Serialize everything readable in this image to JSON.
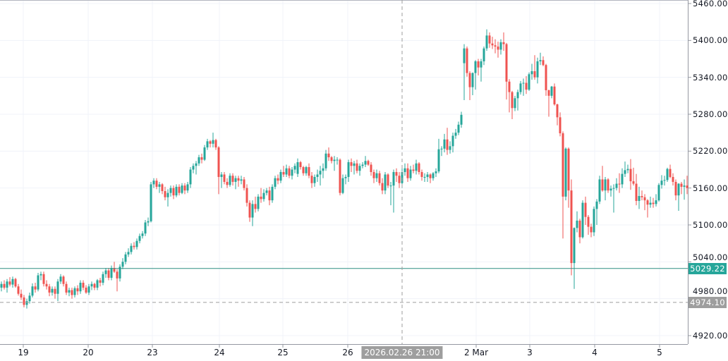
{
  "chart_data": {
    "type": "candlestick",
    "title": "",
    "ylim": [
      4920,
      5460
    ],
    "y_ticks": [
      "5460.00",
      "5400.00",
      "5340.00",
      "5280.00",
      "5220.00",
      "5160.00",
      "5100.00",
      "5040.00",
      "4980.00",
      "4920.00"
    ],
    "x_ticks": [
      {
        "label": "19",
        "bar": 7.75
      },
      {
        "label": "20",
        "bar": 30.75
      },
      {
        "label": "23",
        "bar": 53.5
      },
      {
        "label": "24",
        "bar": 77.25
      },
      {
        "label": "25",
        "bar": 99.75
      },
      {
        "label": "26",
        "bar": 122.75
      },
      {
        "label": "2 Mar",
        "bar": 168.25
      },
      {
        "label": "3",
        "bar": 187.25
      },
      {
        "label": "4",
        "bar": 210.25
      },
      {
        "label": "5",
        "bar": 233.25
      }
    ],
    "current_price": {
      "label": "5029.22",
      "value": 5029.22
    },
    "crosshair": {
      "price_label": "4974.10",
      "price": 4974.1,
      "time_label": "2026.02.26 21:00",
      "bar": 142
    },
    "colors": {
      "up": "#26a69a",
      "down": "#ef5350",
      "grid": "#f0f3fa",
      "crosshair": "#9e9e9e"
    },
    "candles_ohlc": [
      [
        4998,
        5008,
        4992,
        5004
      ],
      [
        5004,
        5010,
        4995,
        4998
      ],
      [
        4998,
        5012,
        4990,
        5008
      ],
      [
        5008,
        5015,
        5000,
        5003
      ],
      [
        5003,
        5016,
        4998,
        5012
      ],
      [
        5012,
        5014,
        4998,
        5000
      ],
      [
        5000,
        5004,
        4985,
        4988
      ],
      [
        4988,
        4995,
        4978,
        4982
      ],
      [
        4982,
        4986,
        4966,
        4970
      ],
      [
        4970,
        4980,
        4964,
        4976
      ],
      [
        4976,
        4990,
        4972,
        4985
      ],
      [
        4985,
        5005,
        4982,
        5000
      ],
      [
        5000,
        5006,
        4990,
        4995
      ],
      [
        4995,
        5022,
        4992,
        5018
      ],
      [
        5018,
        5024,
        5010,
        5020
      ],
      [
        5020,
        5024,
        5000,
        5004
      ],
      [
        5004,
        5010,
        4995,
        5000
      ],
      [
        5000,
        5004,
        4984,
        4990
      ],
      [
        4990,
        5000,
        4985,
        4996
      ],
      [
        4996,
        5000,
        4980,
        4988
      ],
      [
        4988,
        5012,
        4976,
        5008
      ],
      [
        5008,
        5020,
        5004,
        5016
      ],
      [
        5016,
        5018,
        5000,
        5004
      ],
      [
        5004,
        5008,
        4986,
        4990
      ],
      [
        4990,
        4998,
        4984,
        4994
      ],
      [
        4994,
        4998,
        4980,
        4986
      ],
      [
        4986,
        5000,
        4982,
        4997
      ],
      [
        4997,
        5002,
        4986,
        4992
      ],
      [
        4992,
        5010,
        4988,
        5006
      ],
      [
        5006,
        5010,
        4994,
        4998
      ],
      [
        4998,
        5002,
        4988,
        4990
      ],
      [
        4990,
        5004,
        4986,
        5000
      ],
      [
        5000,
        5008,
        4994,
        5004
      ],
      [
        5004,
        5006,
        4994,
        4998
      ],
      [
        4998,
        5012,
        4994,
        5010
      ],
      [
        5010,
        5014,
        5000,
        5006
      ],
      [
        5006,
        5024,
        5002,
        5020
      ],
      [
        5020,
        5030,
        5014,
        5026
      ],
      [
        5026,
        5030,
        5010,
        5014
      ],
      [
        5014,
        5034,
        5010,
        5030
      ],
      [
        5030,
        5040,
        5022,
        5024
      ],
      [
        5024,
        5028,
        4992,
        5013
      ],
      [
        5013,
        5036,
        5008,
        5032
      ],
      [
        5032,
        5046,
        5028,
        5040
      ],
      [
        5040,
        5056,
        5036,
        5052
      ],
      [
        5052,
        5062,
        5048,
        5056
      ],
      [
        5056,
        5070,
        5052,
        5066
      ],
      [
        5066,
        5072,
        5060,
        5064
      ],
      [
        5064,
        5078,
        5060,
        5074
      ],
      [
        5074,
        5086,
        5070,
        5082
      ],
      [
        5082,
        5090,
        5078,
        5086
      ],
      [
        5086,
        5108,
        5082,
        5104
      ],
      [
        5104,
        5112,
        5098,
        5106
      ],
      [
        5106,
        5170,
        5104,
        5166
      ],
      [
        5166,
        5176,
        5160,
        5172
      ],
      [
        5172,
        5176,
        5158,
        5162
      ],
      [
        5162,
        5170,
        5152,
        5166
      ],
      [
        5166,
        5168,
        5150,
        5155
      ],
      [
        5155,
        5162,
        5140,
        5145
      ],
      [
        5145,
        5158,
        5130,
        5152
      ],
      [
        5152,
        5164,
        5146,
        5160
      ],
      [
        5160,
        5164,
        5142,
        5148
      ],
      [
        5148,
        5166,
        5145,
        5162
      ],
      [
        5162,
        5166,
        5148,
        5152
      ],
      [
        5152,
        5168,
        5150,
        5164
      ],
      [
        5164,
        5168,
        5150,
        5156
      ],
      [
        5156,
        5170,
        5152,
        5166
      ],
      [
        5166,
        5194,
        5160,
        5190
      ],
      [
        5190,
        5200,
        5184,
        5196
      ],
      [
        5196,
        5204,
        5182,
        5200
      ],
      [
        5200,
        5214,
        5196,
        5210
      ],
      [
        5210,
        5216,
        5200,
        5206
      ],
      [
        5206,
        5230,
        5204,
        5226
      ],
      [
        5226,
        5240,
        5222,
        5236
      ],
      [
        5236,
        5238,
        5226,
        5232
      ],
      [
        5232,
        5250,
        5226,
        5238
      ],
      [
        5238,
        5240,
        5222,
        5226
      ],
      [
        5226,
        5228,
        5150,
        5178
      ],
      [
        5178,
        5186,
        5160,
        5182
      ],
      [
        5182,
        5186,
        5166,
        5170
      ],
      [
        5170,
        5176,
        5160,
        5165
      ],
      [
        5165,
        5184,
        5162,
        5180
      ],
      [
        5180,
        5184,
        5164,
        5170
      ],
      [
        5170,
        5180,
        5158,
        5176
      ],
      [
        5176,
        5180,
        5162,
        5172
      ],
      [
        5172,
        5180,
        5166,
        5174
      ],
      [
        5174,
        5178,
        5156,
        5160
      ],
      [
        5160,
        5166,
        5130,
        5136
      ],
      [
        5136,
        5140,
        5105,
        5112
      ],
      [
        5112,
        5140,
        5098,
        5134
      ],
      [
        5134,
        5146,
        5120,
        5126
      ],
      [
        5126,
        5150,
        5122,
        5146
      ],
      [
        5146,
        5160,
        5136,
        5142
      ],
      [
        5142,
        5158,
        5138,
        5152
      ],
      [
        5152,
        5160,
        5148,
        5156
      ],
      [
        5156,
        5162,
        5132,
        5140
      ],
      [
        5140,
        5166,
        5136,
        5162
      ],
      [
        5162,
        5180,
        5158,
        5176
      ],
      [
        5176,
        5182,
        5166,
        5172
      ],
      [
        5172,
        5190,
        5168,
        5186
      ],
      [
        5186,
        5196,
        5178,
        5182
      ],
      [
        5182,
        5198,
        5178,
        5192
      ],
      [
        5192,
        5196,
        5176,
        5180
      ],
      [
        5180,
        5194,
        5174,
        5190
      ],
      [
        5190,
        5200,
        5184,
        5196
      ],
      [
        5183,
        5208,
        5178,
        5202
      ],
      [
        5202,
        5204,
        5190,
        5194
      ],
      [
        5194,
        5196,
        5180,
        5184
      ],
      [
        5184,
        5196,
        5180,
        5194
      ],
      [
        5194,
        5200,
        5176,
        5180
      ],
      [
        5180,
        5186,
        5160,
        5168
      ],
      [
        5168,
        5182,
        5162,
        5178
      ],
      [
        5178,
        5190,
        5170,
        5182
      ],
      [
        5182,
        5196,
        5164,
        5188
      ],
      [
        5188,
        5200,
        5176,
        5192
      ],
      [
        5192,
        5222,
        5188,
        5216
      ],
      [
        5216,
        5226,
        5204,
        5210
      ],
      [
        5210,
        5212,
        5200,
        5204
      ],
      [
        5204,
        5212,
        5188,
        5206
      ],
      [
        5206,
        5210,
        5198,
        5206
      ],
      [
        5206,
        5208,
        5148,
        5152
      ],
      [
        5152,
        5182,
        5150,
        5176
      ],
      [
        5176,
        5182,
        5166,
        5178
      ],
      [
        5178,
        5206,
        5170,
        5202
      ],
      [
        5202,
        5208,
        5186,
        5196
      ],
      [
        5196,
        5204,
        5182,
        5200
      ],
      [
        5200,
        5206,
        5184,
        5188
      ],
      [
        5188,
        5200,
        5180,
        5196
      ],
      [
        5196,
        5202,
        5192,
        5198
      ],
      [
        5198,
        5212,
        5194,
        5204
      ],
      [
        5204,
        5206,
        5196,
        5198
      ],
      [
        5198,
        5202,
        5180,
        5186
      ],
      [
        5186,
        5190,
        5168,
        5176
      ],
      [
        5176,
        5190,
        5170,
        5184
      ],
      [
        5184,
        5188,
        5164,
        5168
      ],
      [
        5168,
        5176,
        5150,
        5156
      ],
      [
        5156,
        5186,
        5150,
        5182
      ],
      [
        5182,
        5184,
        5160,
        5164
      ],
      [
        5164,
        5170,
        5132,
        5164
      ],
      [
        5164,
        5190,
        5120,
        5186
      ],
      [
        5186,
        5192,
        5170,
        5180
      ],
      [
        5180,
        5186,
        5160,
        5168
      ],
      [
        5168,
        5192,
        5160,
        5186
      ],
      [
        5186,
        5200,
        5180,
        5192
      ],
      [
        5192,
        5200,
        5170,
        5176
      ],
      [
        5176,
        5196,
        5172,
        5190
      ],
      [
        5190,
        5198,
        5184,
        5188
      ],
      [
        5188,
        5206,
        5182,
        5200
      ],
      [
        5200,
        5202,
        5182,
        5186
      ],
      [
        5186,
        5190,
        5172,
        5178
      ],
      [
        5178,
        5184,
        5170,
        5178
      ],
      [
        5178,
        5186,
        5170,
        5182
      ],
      [
        5182,
        5184,
        5168,
        5176
      ],
      [
        5176,
        5186,
        5172,
        5184
      ],
      [
        5184,
        5192,
        5178,
        5187
      ],
      [
        5187,
        5240,
        5184,
        5223
      ],
      [
        5223,
        5228,
        5212,
        5224
      ],
      [
        5224,
        5248,
        5218,
        5239
      ],
      [
        5239,
        5258,
        5214,
        5222
      ],
      [
        5222,
        5236,
        5216,
        5228
      ],
      [
        5228,
        5250,
        5218,
        5245
      ],
      [
        5245,
        5256,
        5240,
        5250
      ],
      [
        5250,
        5268,
        5246,
        5263
      ],
      [
        5263,
        5284,
        5258,
        5279
      ],
      [
        5363,
        5394,
        5303,
        5387
      ],
      [
        5387,
        5390,
        5341,
        5347
      ],
      [
        5347,
        5350,
        5303,
        5324
      ],
      [
        5324,
        5348,
        5311,
        5347
      ],
      [
        5347,
        5368,
        5320,
        5366
      ],
      [
        5366,
        5370,
        5343,
        5356
      ],
      [
        5356,
        5370,
        5333,
        5366
      ],
      [
        5366,
        5390,
        5360,
        5387
      ],
      [
        5387,
        5418,
        5383,
        5408
      ],
      [
        5408,
        5413,
        5388,
        5395
      ],
      [
        5395,
        5406,
        5386,
        5392
      ],
      [
        5392,
        5402,
        5379,
        5390
      ],
      [
        5390,
        5398,
        5372,
        5385
      ],
      [
        5385,
        5402,
        5377,
        5397
      ],
      [
        5397,
        5413,
        5383,
        5394
      ],
      [
        5394,
        5396,
        5304,
        5333
      ],
      [
        5333,
        5337,
        5283,
        5316
      ],
      [
        5316,
        5318,
        5272,
        5290
      ],
      [
        5290,
        5310,
        5285,
        5306
      ],
      [
        5306,
        5320,
        5286,
        5316
      ],
      [
        5316,
        5334,
        5312,
        5330
      ],
      [
        5330,
        5338,
        5310,
        5331
      ],
      [
        5331,
        5342,
        5313,
        5320
      ],
      [
        5320,
        5348,
        5318,
        5345
      ],
      [
        5345,
        5362,
        5336,
        5350
      ],
      [
        5350,
        5376,
        5336,
        5340
      ],
      [
        5340,
        5372,
        5330,
        5366
      ],
      [
        5366,
        5380,
        5360,
        5368
      ],
      [
        5368,
        5374,
        5358,
        5360
      ],
      [
        5360,
        5362,
        5310,
        5319
      ],
      [
        5319,
        5320,
        5276,
        5310
      ],
      [
        5310,
        5326,
        5306,
        5325
      ],
      [
        5325,
        5330,
        5294,
        5296
      ],
      [
        5296,
        5297,
        5262,
        5275
      ],
      [
        5275,
        5283,
        5244,
        5249
      ],
      [
        5249,
        5252,
        5078,
        5146
      ],
      [
        5146,
        5226,
        5140,
        5224
      ],
      [
        5224,
        5226,
        5128,
        5156
      ],
      [
        5156,
        5174,
        5018,
        5038
      ],
      [
        5038,
        5096,
        4996,
        5095
      ],
      [
        5095,
        5122,
        5088,
        5107
      ],
      [
        5107,
        5110,
        5070,
        5080
      ],
      [
        5080,
        5140,
        5078,
        5136
      ],
      [
        5136,
        5146,
        5100,
        5113
      ],
      [
        5113,
        5116,
        5084,
        5097
      ],
      [
        5097,
        5102,
        5080,
        5088
      ],
      [
        5088,
        5130,
        5082,
        5126
      ],
      [
        5126,
        5142,
        5100,
        5138
      ],
      [
        5138,
        5180,
        5134,
        5174
      ],
      [
        5174,
        5196,
        5154,
        5156
      ],
      [
        5156,
        5178,
        5140,
        5174
      ],
      [
        5174,
        5176,
        5152,
        5156
      ],
      [
        5156,
        5164,
        5146,
        5159
      ],
      [
        5159,
        5166,
        5120,
        5160
      ],
      [
        5160,
        5176,
        5156,
        5167
      ],
      [
        5167,
        5184,
        5152,
        5166
      ],
      [
        5166,
        5192,
        5160,
        5183
      ],
      [
        5183,
        5203,
        5178,
        5189
      ],
      [
        5189,
        5198,
        5184,
        5191
      ],
      [
        5191,
        5207,
        5157,
        5171
      ],
      [
        5171,
        5193,
        5164,
        5167
      ],
      [
        5167,
        5183,
        5132,
        5139
      ],
      [
        5139,
        5162,
        5126,
        5147
      ],
      [
        5147,
        5156,
        5140,
        5145
      ],
      [
        5145,
        5150,
        5124,
        5140
      ],
      [
        5140,
        5142,
        5112,
        5133
      ],
      [
        5133,
        5146,
        5128,
        5136
      ],
      [
        5136,
        5144,
        5128,
        5134
      ],
      [
        5134,
        5150,
        5130,
        5140
      ],
      [
        5140,
        5168,
        5138,
        5165
      ],
      [
        5165,
        5181,
        5159,
        5172
      ],
      [
        5172,
        5180,
        5164,
        5173
      ],
      [
        5173,
        5193,
        5170,
        5191
      ],
      [
        5191,
        5198,
        5176,
        5178
      ],
      [
        5178,
        5184,
        5164,
        5170
      ],
      [
        5170,
        5174,
        5140,
        5148
      ],
      [
        5148,
        5168,
        5123,
        5167
      ],
      [
        5167,
        5170,
        5150,
        5162
      ],
      [
        5162,
        5174,
        5141,
        5164
      ],
      [
        5164,
        5180,
        5150,
        5160
      ]
    ]
  }
}
